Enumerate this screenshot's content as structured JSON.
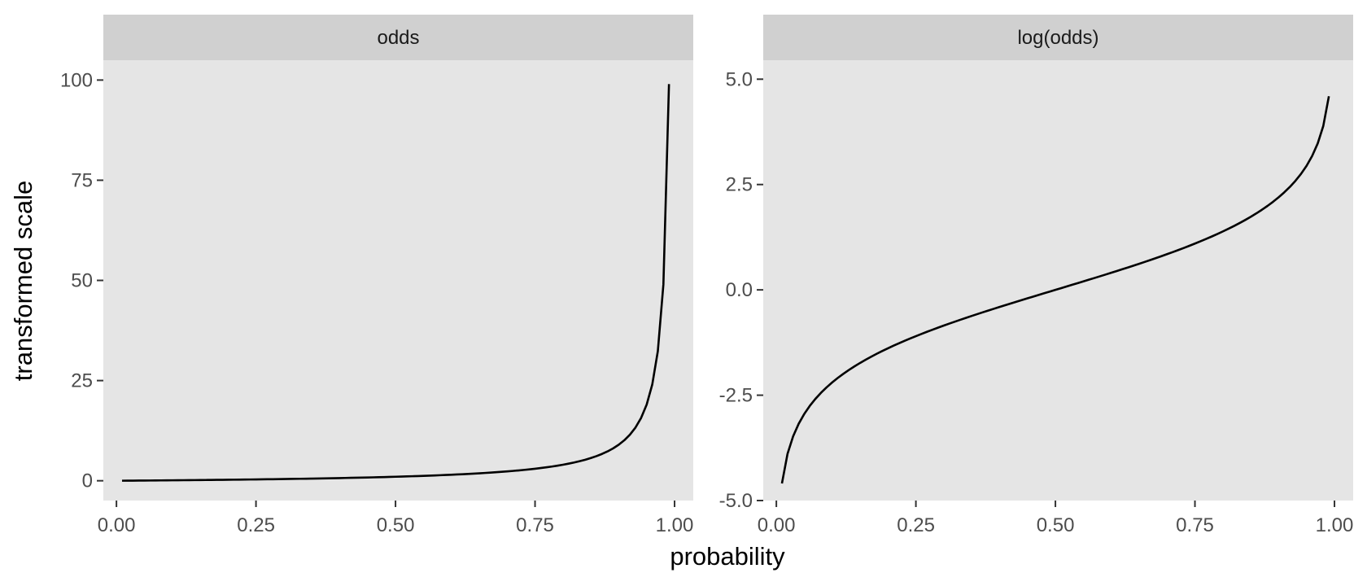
{
  "chart_data": {
    "type": "line",
    "layout": "facets-side-by-side",
    "xlabel": "probability",
    "ylabel": "transformed scale",
    "colors": {
      "panel_bg": "#e5e5e5",
      "strip_bg": "#d0d0d0",
      "line": "#000000",
      "tick_text": "#4d4d4d",
      "tick_mark": "#333333"
    },
    "x_ticks": [
      0,
      0.25,
      0.5,
      0.75,
      1
    ],
    "x_tick_labels": [
      "0.00",
      "0.25",
      "0.50",
      "0.75",
      "1.00"
    ],
    "xlim": [
      -0.0235,
      1.0335
    ],
    "p_range": [
      0.01,
      0.99
    ],
    "p_step": 0.01,
    "grid": false,
    "facets": [
      {
        "strip": "odds",
        "function": "p/(1-p)",
        "ylim": [
          -4.94,
          104.95
        ],
        "y_ticks": [
          0,
          25,
          50,
          75,
          100
        ],
        "y_tick_labels": [
          "0",
          "25",
          "50",
          "75",
          "100"
        ]
      },
      {
        "strip": "log(odds)",
        "function": "log(p/(1-p))",
        "ylim": [
          -5.0,
          5.45
        ],
        "y_ticks": [
          -5,
          -2.5,
          0,
          2.5,
          5
        ],
        "y_tick_labels": [
          "-5.0",
          "-2.5",
          "0.0",
          "2.5",
          "5.0"
        ]
      }
    ]
  }
}
